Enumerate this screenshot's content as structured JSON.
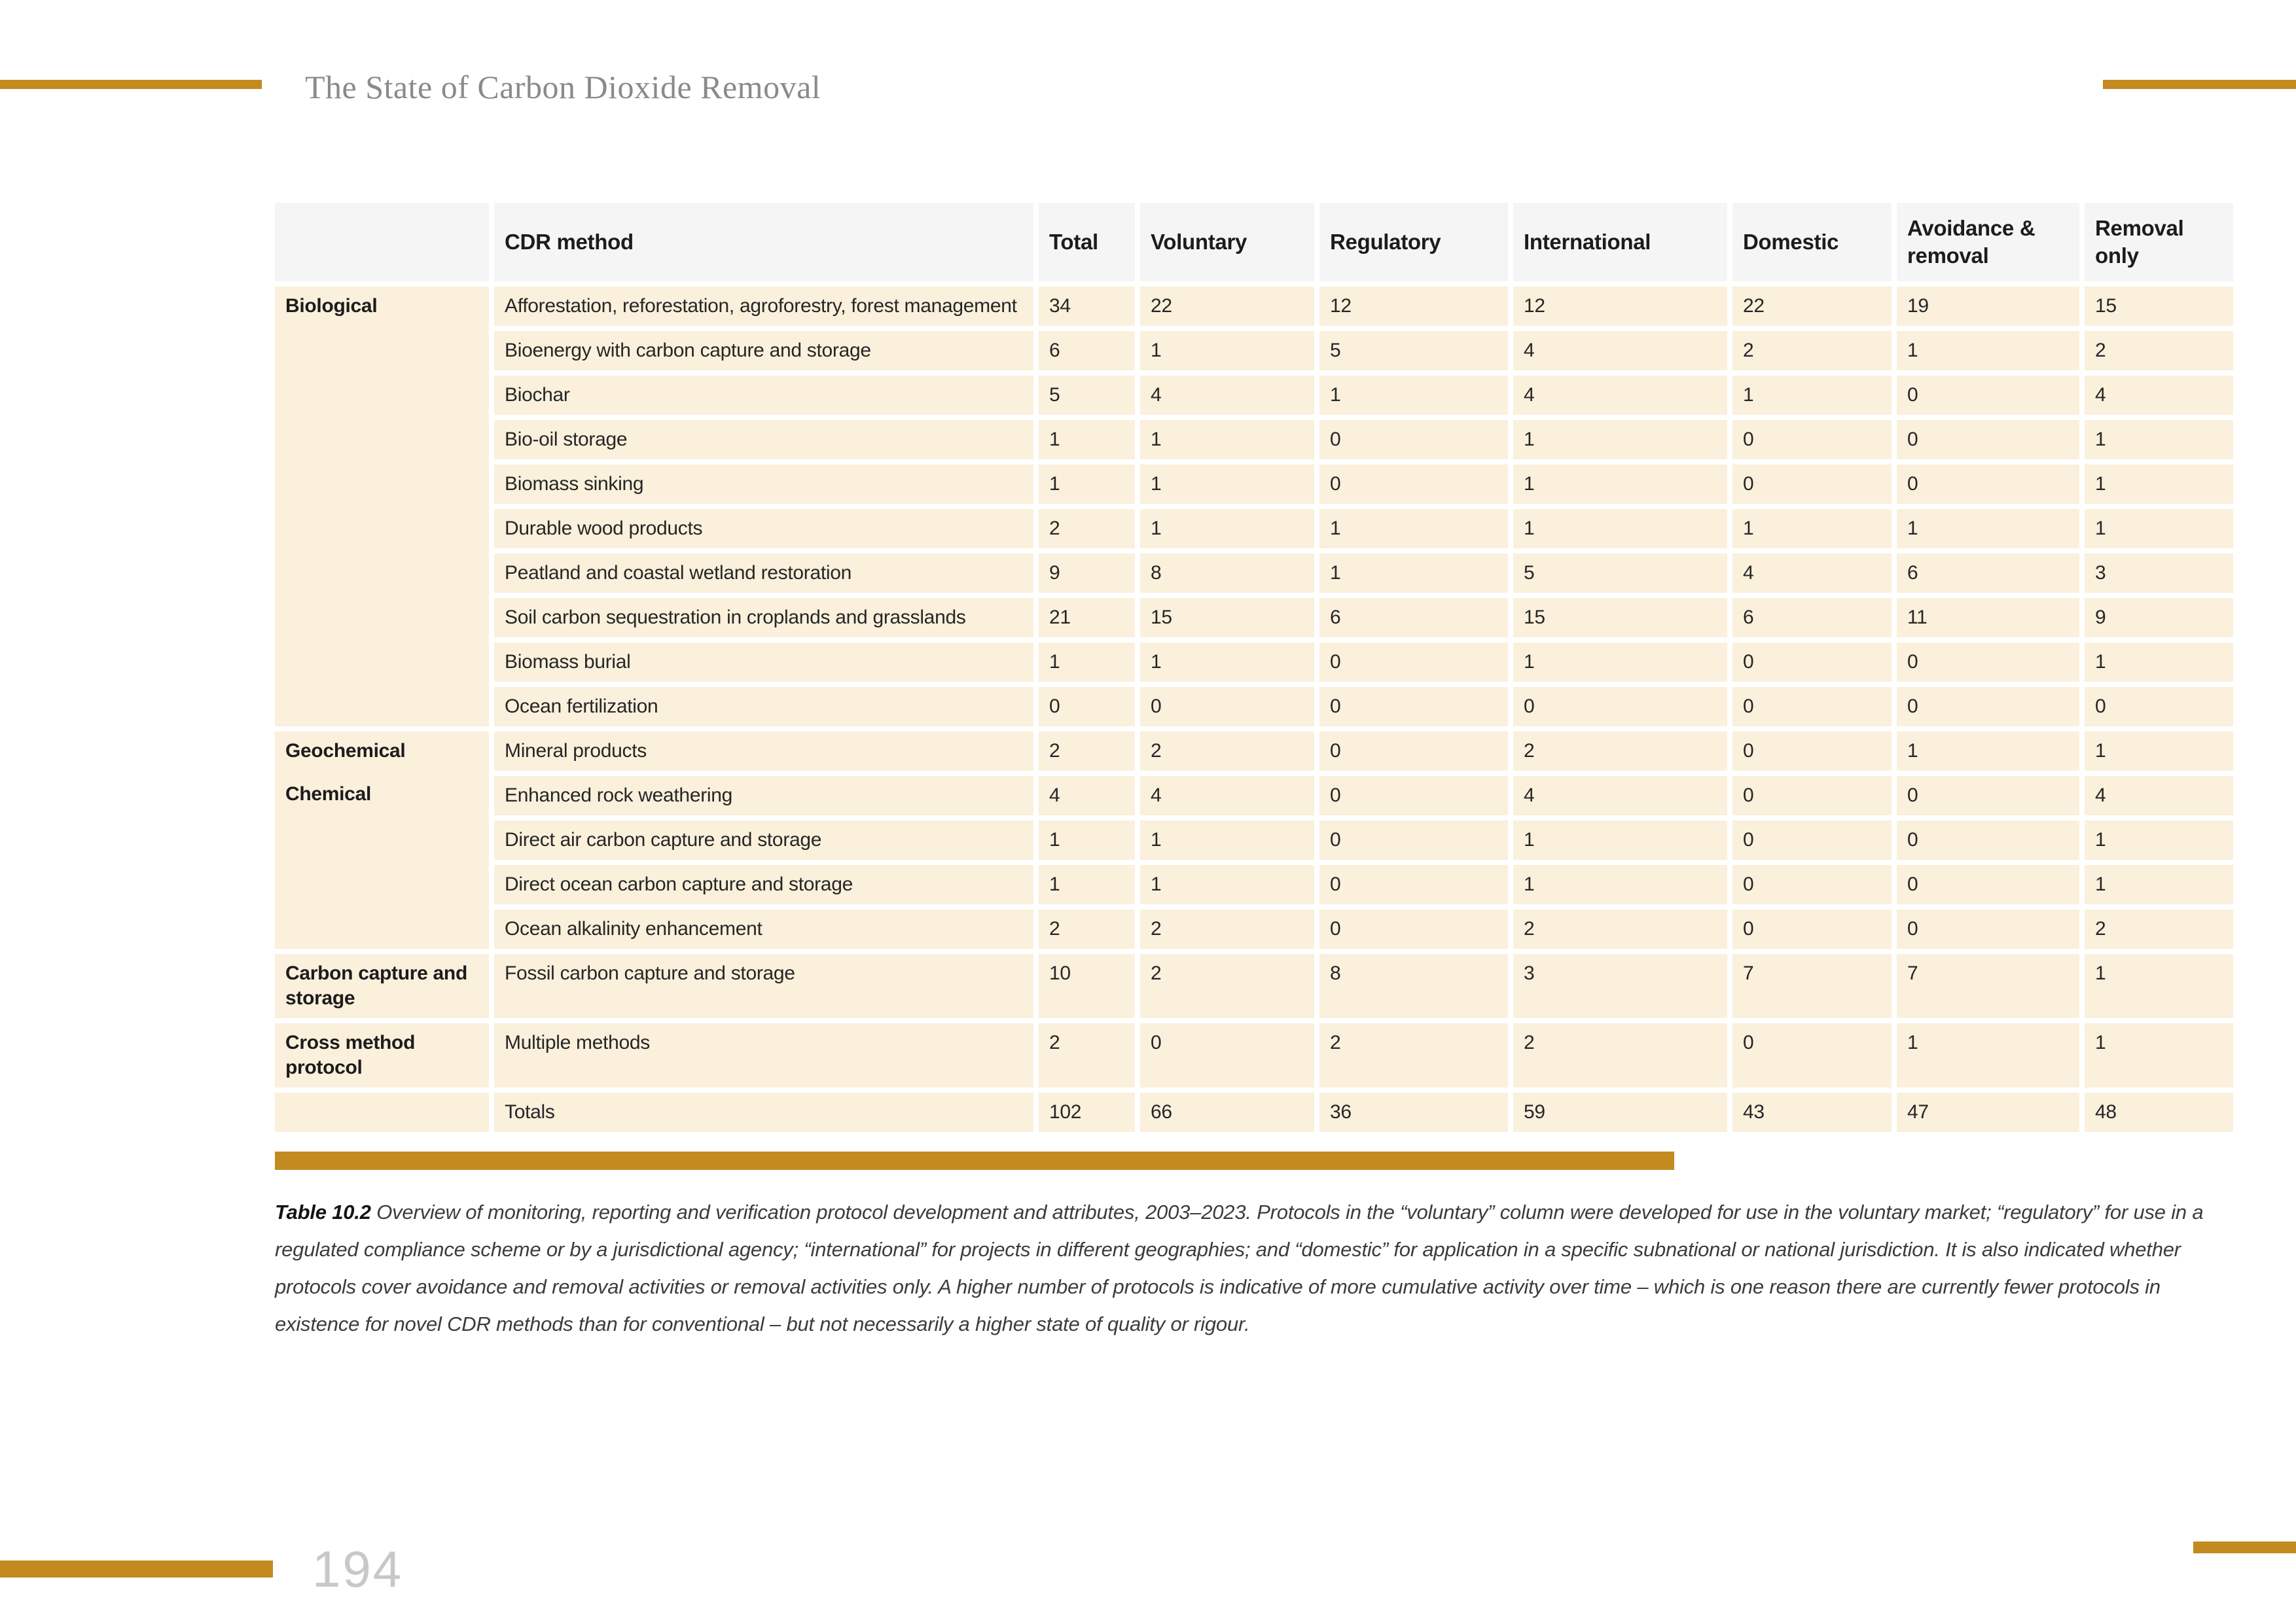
{
  "page": {
    "title": "The State of Carbon Dioxide Removal",
    "page_number": "194"
  },
  "colors": {
    "accent_gold": "#C28A1F",
    "cell_beige": "#FAF0DC",
    "header_gray": "#F5F5F5",
    "title_gray": "#8A8A8A",
    "page_number_gray": "#C6C8CA"
  },
  "table": {
    "columns": [
      "",
      "CDR method",
      "Total",
      "Voluntary",
      "Regulatory",
      "International",
      "Domestic",
      "Avoidance & removal",
      "Removal only"
    ],
    "groups": [
      {
        "category_labels": [
          "Biological"
        ],
        "rows": [
          {
            "method": "Afforestation, reforestation, agroforestry, forest management",
            "values": [
              34,
              22,
              12,
              12,
              22,
              19,
              15
            ]
          },
          {
            "method": "Bioenergy with carbon capture and storage",
            "values": [
              6,
              1,
              5,
              4,
              2,
              1,
              2
            ]
          },
          {
            "method": "Biochar",
            "values": [
              5,
              4,
              1,
              4,
              1,
              0,
              4
            ]
          },
          {
            "method": "Bio-oil storage",
            "values": [
              1,
              1,
              0,
              1,
              0,
              0,
              1
            ]
          },
          {
            "method": "Biomass sinking",
            "values": [
              1,
              1,
              0,
              1,
              0,
              0,
              1
            ]
          },
          {
            "method": "Durable wood products",
            "values": [
              2,
              1,
              1,
              1,
              1,
              1,
              1
            ]
          },
          {
            "method": "Peatland and coastal wetland restoration",
            "values": [
              9,
              8,
              1,
              5,
              4,
              6,
              3
            ]
          },
          {
            "method": "Soil carbon sequestration in croplands and grasslands",
            "values": [
              21,
              15,
              6,
              15,
              6,
              11,
              9
            ]
          },
          {
            "method": "Biomass burial",
            "values": [
              1,
              1,
              0,
              1,
              0,
              0,
              1
            ]
          },
          {
            "method": "Ocean fertilization",
            "values": [
              0,
              0,
              0,
              0,
              0,
              0,
              0
            ]
          }
        ]
      },
      {
        "category_labels": [
          "Geochemical",
          "Chemical"
        ],
        "rows": [
          {
            "method": "Mineral products",
            "values": [
              2,
              2,
              0,
              2,
              0,
              1,
              1
            ]
          },
          {
            "method": "Enhanced rock weathering",
            "values": [
              4,
              4,
              0,
              4,
              0,
              0,
              4
            ]
          },
          {
            "method": "Direct air carbon capture and storage",
            "values": [
              1,
              1,
              0,
              1,
              0,
              0,
              1
            ]
          },
          {
            "method": "Direct ocean carbon capture and storage",
            "values": [
              1,
              1,
              0,
              1,
              0,
              0,
              1
            ]
          },
          {
            "method": "Ocean alkalinity enhancement",
            "values": [
              2,
              2,
              0,
              2,
              0,
              0,
              2
            ]
          }
        ]
      },
      {
        "category_labels": [
          "Carbon capture and storage"
        ],
        "rows": [
          {
            "method": "Fossil carbon capture and storage",
            "values": [
              10,
              2,
              8,
              3,
              7,
              7,
              1
            ]
          }
        ]
      },
      {
        "category_labels": [
          "Cross method protocol"
        ],
        "rows": [
          {
            "method": "Multiple methods",
            "values": [
              2,
              0,
              2,
              2,
              0,
              1,
              1
            ]
          }
        ]
      },
      {
        "category_labels": [
          ""
        ],
        "rows": [
          {
            "method": "Totals",
            "values": [
              102,
              66,
              36,
              59,
              43,
              47,
              48
            ]
          }
        ]
      }
    ]
  },
  "caption": {
    "label": "Table 10.2",
    "text": "Overview of monitoring, reporting and verification protocol development and attributes, 2003–2023. Protocols in the “voluntary” column were developed for use in the voluntary market; “regulatory” for use in a regulated compliance scheme or by a jurisdictional agency; “international” for projects in different geographies; and “domestic” for application in a specific subnational or national jurisdiction. It is also indicated whether protocols cover avoidance and removal activities or removal activities only. A higher number of protocols is indicative of more cumulative activity over time – which is one reason there are currently fewer protocols in existence for novel CDR methods than for conventional – but not necessarily a higher state of quality or rigour."
  }
}
